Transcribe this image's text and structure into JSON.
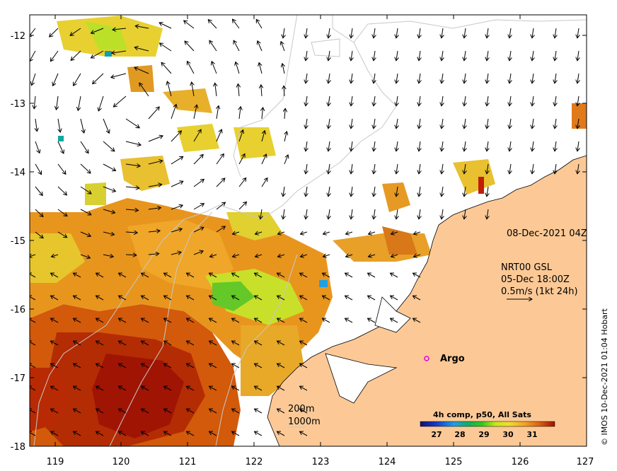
{
  "map": {
    "timestamp": "08-Dec-2021 04Z",
    "current_source": "NRT00 GSL",
    "current_time": "05-Dec 18:00Z",
    "current_scale": "0.5m/s (1kt 24h)",
    "argo_label": "Argo",
    "contours": [
      "200m",
      "1000m"
    ],
    "colorbar": {
      "title": "4h comp, p50, All Sats",
      "ticks": [
        "27",
        "28",
        "29",
        "30",
        "31"
      ],
      "range": [
        26.2,
        32.0
      ]
    },
    "credit": "© IMOS 10-Dec-2021 01:04 Hobart",
    "lon_ticks": [
      "119",
      "120",
      "121",
      "122",
      "123",
      "124",
      "125",
      "126",
      "127"
    ],
    "lat_ticks": [
      "-12",
      "-13",
      "-14",
      "-15",
      "-16",
      "-17",
      "-18"
    ],
    "colors": {
      "land": "#fcc996",
      "argo": "#e000e0",
      "isobath": "#c8c8c8"
    }
  }
}
